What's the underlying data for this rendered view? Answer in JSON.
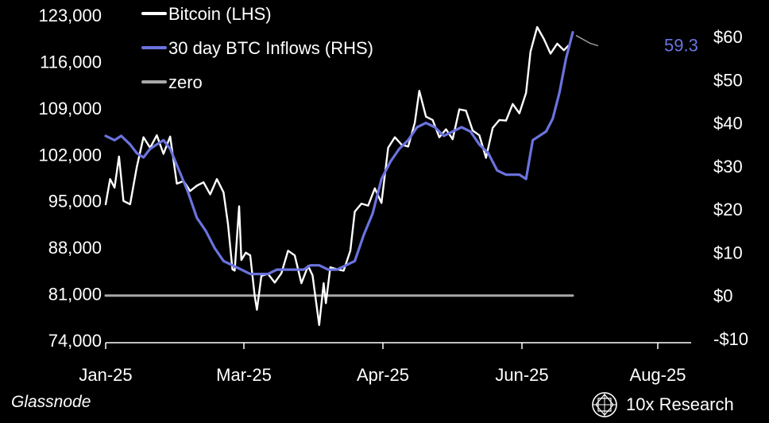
{
  "chart_data": {
    "type": "line",
    "x_ticks": [
      "Jan-25",
      "Mar-25",
      "Apr-25",
      "Jun-25",
      "Aug-25"
    ],
    "y_left": {
      "label": "",
      "min": 74000,
      "max": 123000,
      "ticks": [
        74000,
        81000,
        88000,
        95000,
        102000,
        109000,
        116000,
        123000
      ],
      "tick_labels": [
        "74,000",
        "81,000",
        "88,000",
        "95,000",
        "102,000",
        "109,000",
        "116,000",
        "123,000"
      ]
    },
    "y_right": {
      "label": "",
      "min": -10,
      "max": 60,
      "ticks": [
        -10,
        0,
        10,
        20,
        30,
        40,
        50,
        60
      ],
      "tick_labels": [
        "-$10",
        "$0",
        "$10",
        "$20",
        "$30",
        "$40",
        "$50",
        "$60"
      ]
    },
    "legend_position": "top-left",
    "grid": false,
    "series": [
      {
        "name": "Bitcoin (LHS)",
        "axis": "left",
        "color": "#ffffff",
        "x": [
          "2025-01-01",
          "2025-01-03",
          "2025-01-05",
          "2025-01-07",
          "2025-01-09",
          "2025-01-12",
          "2025-01-15",
          "2025-01-18",
          "2025-01-21",
          "2025-01-24",
          "2025-01-27",
          "2025-01-30",
          "2025-02-02",
          "2025-02-05",
          "2025-02-08",
          "2025-02-11",
          "2025-02-14",
          "2025-02-17",
          "2025-02-20",
          "2025-02-23",
          "2025-02-25",
          "2025-02-27",
          "2025-02-28",
          "2025-03-02",
          "2025-03-03",
          "2025-03-05",
          "2025-03-07",
          "2025-03-09",
          "2025-03-10",
          "2025-03-12",
          "2025-03-15",
          "2025-03-18",
          "2025-03-21",
          "2025-03-24",
          "2025-03-27",
          "2025-03-30",
          "2025-04-02",
          "2025-04-04",
          "2025-04-07",
          "2025-04-09",
          "2025-04-10",
          "2025-04-12",
          "2025-04-15",
          "2025-04-18",
          "2025-04-21",
          "2025-04-23",
          "2025-04-26",
          "2025-04-29",
          "2025-05-02",
          "2025-05-05",
          "2025-05-08",
          "2025-05-11",
          "2025-05-14",
          "2025-05-17",
          "2025-05-20",
          "2025-05-22",
          "2025-05-25",
          "2025-05-28",
          "2025-05-31",
          "2025-06-03",
          "2025-06-06",
          "2025-06-09",
          "2025-06-12",
          "2025-06-15",
          "2025-06-18",
          "2025-06-21",
          "2025-06-24",
          "2025-06-27",
          "2025-06-30",
          "2025-07-03",
          "2025-07-06",
          "2025-07-09",
          "2025-07-11",
          "2025-07-14",
          "2025-07-17",
          "2025-07-20",
          "2025-07-23",
          "2025-07-26",
          "2025-07-28"
        ],
        "values": [
          94500,
          98300,
          97000,
          101700,
          95000,
          94500,
          100100,
          104600,
          103000,
          104900,
          102100,
          104700,
          97600,
          98000,
          96500,
          97300,
          97800,
          96000,
          98300,
          96300,
          91500,
          84700,
          84500,
          94200,
          86100,
          87200,
          86800,
          80700,
          78600,
          83700,
          84000,
          82700,
          84100,
          87500,
          86800,
          82600,
          85200,
          83800,
          76300,
          82600,
          79600,
          85000,
          84700,
          84500,
          87500,
          93400,
          94600,
          94300,
          96900,
          94700,
          103000,
          104600,
          103500,
          103200,
          106800,
          111600,
          107700,
          107200,
          104600,
          105800,
          104300,
          108800,
          108600,
          105600,
          104900,
          101500,
          106000,
          107200,
          107100,
          109600,
          108200,
          111300,
          117500,
          121200,
          119400,
          117200,
          118700,
          117700,
          118400
        ]
      },
      {
        "name": "30 day BTC Inflows (RHS)",
        "axis": "right",
        "color": "#6b73de",
        "x": [
          "2025-01-01",
          "2025-01-05",
          "2025-01-08",
          "2025-01-12",
          "2025-01-15",
          "2025-01-18",
          "2025-01-21",
          "2025-01-24",
          "2025-01-27",
          "2025-01-30",
          "2025-02-03",
          "2025-02-07",
          "2025-02-11",
          "2025-02-15",
          "2025-02-19",
          "2025-02-23",
          "2025-02-27",
          "2025-03-03",
          "2025-03-07",
          "2025-03-11",
          "2025-03-15",
          "2025-03-19",
          "2025-03-23",
          "2025-03-27",
          "2025-03-31",
          "2025-04-03",
          "2025-04-07",
          "2025-04-11",
          "2025-04-15",
          "2025-04-19",
          "2025-04-23",
          "2025-04-27",
          "2025-05-01",
          "2025-05-05",
          "2025-05-09",
          "2025-05-13",
          "2025-05-17",
          "2025-05-21",
          "2025-05-25",
          "2025-05-29",
          "2025-06-02",
          "2025-06-06",
          "2025-06-10",
          "2025-06-14",
          "2025-06-18",
          "2025-06-22",
          "2025-06-26",
          "2025-06-30",
          "2025-07-03",
          "2025-07-06",
          "2025-07-09",
          "2025-07-12",
          "2025-07-15",
          "2025-07-18",
          "2025-07-21",
          "2025-07-24",
          "2025-07-27",
          "2025-07-30"
        ],
        "values": [
          37,
          36,
          37,
          35,
          33,
          32,
          34,
          35,
          36,
          34,
          29,
          24,
          18,
          15,
          11,
          8,
          7,
          6,
          5,
          5,
          5,
          6,
          6,
          6,
          6,
          7,
          7,
          6,
          6,
          7,
          8,
          14,
          19,
          27,
          31,
          34,
          36,
          39,
          40,
          39,
          37,
          38,
          39,
          38,
          35,
          33,
          29,
          28,
          28,
          28,
          27,
          36,
          37,
          38,
          41,
          47,
          55,
          61
        ]
      },
      {
        "name": "zero",
        "axis": "right",
        "color": "#a8a8a8",
        "x": [
          "2025-01-01",
          "2025-07-30"
        ],
        "values": [
          0,
          0
        ]
      }
    ],
    "end_label": {
      "series": "30 day BTC Inflows (RHS)",
      "value": "59.3"
    }
  },
  "footer": {
    "source": "Glassnode",
    "brand": "10x Research",
    "brand_icon": "geometric-logo-icon"
  }
}
